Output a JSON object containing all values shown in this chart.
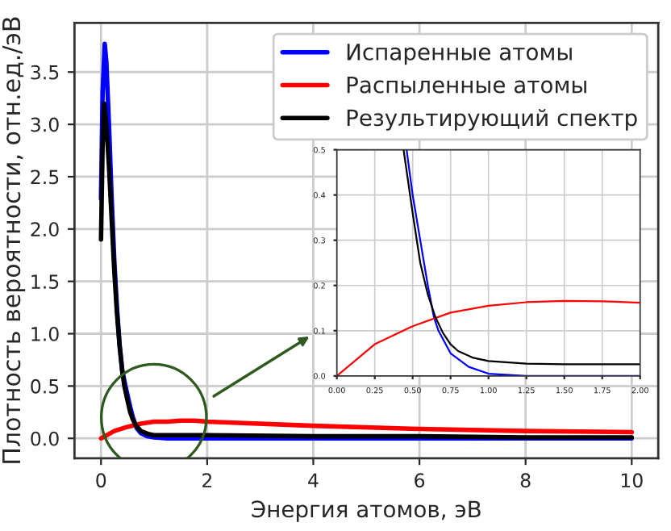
{
  "chart_data": [
    {
      "type": "line",
      "xlabel": "Энергия атомов, эВ",
      "ylabel": "Плотность вероятности, отн.ед./эВ",
      "xlim": [
        -0.5,
        10.5
      ],
      "ylim": [
        -0.19,
        3.97
      ],
      "xticks": [
        0,
        2,
        4,
        6,
        8,
        10
      ],
      "yticks": [
        {
          "value": 0,
          "label": "0.0"
        },
        0.5,
        {
          "value": 1,
          "label": "1.0"
        },
        1.5,
        {
          "value": 2,
          "label": "2.0"
        },
        2.5,
        {
          "value": 3,
          "label": "3.0"
        },
        3.5
      ],
      "grid": true,
      "legend": "top right",
      "series": [
        {
          "name": "Испаренные атомы",
          "color": "#0000ff",
          "x": [
            0,
            0.03,
            0.07,
            0.1,
            0.15,
            0.2,
            0.25,
            0.3,
            0.35,
            0.4,
            0.46,
            0.55,
            0.6,
            0.67,
            0.75,
            0.87,
            1.0,
            1.25,
            2,
            4,
            6,
            8,
            10
          ],
          "values": [
            2.29,
            3.3,
            3.77,
            3.6,
            3.0,
            2.3,
            1.7,
            1.25,
            0.9,
            0.65,
            0.5,
            0.3,
            0.2,
            0.1,
            0.05,
            0.02,
            0.01,
            0,
            0,
            0,
            0,
            0,
            0
          ]
        },
        {
          "name": "Распыленные атомы",
          "color": "#ff0000",
          "x": [
            0,
            0.25,
            0.5,
            0.75,
            1.0,
            1.25,
            1.5,
            1.75,
            2.0,
            4,
            6,
            8,
            10
          ],
          "values": [
            0,
            0.07,
            0.11,
            0.14,
            0.16,
            0.16,
            0.17,
            0.17,
            0.16,
            0.12,
            0.09,
            0.07,
            0.06
          ]
        },
        {
          "name": "Результирующий спектр",
          "color": "#000000",
          "x": [
            0,
            0.03,
            0.06,
            0.1,
            0.15,
            0.2,
            0.25,
            0.3,
            0.35,
            0.4,
            0.44,
            0.5,
            0.55,
            0.6,
            0.65,
            0.7,
            0.75,
            0.8,
            0.9,
            1.0,
            1.25,
            1.5,
            2.0,
            4,
            6,
            8,
            10
          ],
          "values": [
            1.9,
            2.8,
            3.2,
            3.0,
            2.6,
            2.1,
            1.6,
            1.2,
            0.88,
            0.64,
            0.5,
            0.36,
            0.25,
            0.18,
            0.13,
            0.1,
            0.07,
            0.06,
            0.04,
            0.03,
            0.03,
            0.03,
            0.03,
            0.02,
            0.02,
            0.01,
            0.01
          ]
        }
      ]
    },
    {
      "type": "line",
      "xlim": [
        0,
        2
      ],
      "ylim": [
        0,
        0.5
      ],
      "xticks": [
        {
          "value": 0,
          "label": "0.00"
        },
        {
          "value": 0.25,
          "label": "0.25"
        },
        {
          "value": 0.5,
          "label": "0.50"
        },
        {
          "value": 0.75,
          "label": "0.75"
        },
        {
          "value": 1,
          "label": "1.00"
        },
        {
          "value": 1.25,
          "label": "1.25"
        },
        {
          "value": 1.5,
          "label": "1.50"
        },
        {
          "value": 1.75,
          "label": "1.75"
        },
        {
          "value": 2,
          "label": "2.00"
        }
      ],
      "yticks": [
        {
          "value": 0,
          "label": "0.0"
        },
        0.1,
        0.2,
        0.3,
        0.4,
        0.5
      ],
      "grid": true,
      "series": [
        {
          "color": "#0000ff",
          "x": [
            0.46,
            0.5,
            0.55,
            0.6,
            0.64,
            0.67,
            0.75,
            0.87,
            1.0,
            1.25,
            1.5,
            2.0
          ],
          "values": [
            0.5,
            0.4,
            0.3,
            0.2,
            0.13,
            0.1,
            0.05,
            0.02,
            0.005,
            0,
            0,
            0
          ]
        },
        {
          "color": "#ff0000",
          "x": [
            0,
            0.25,
            0.5,
            0.75,
            1.0,
            1.25,
            1.5,
            1.75,
            2.0
          ],
          "values": [
            0,
            0.07,
            0.11,
            0.14,
            0.155,
            0.163,
            0.166,
            0.165,
            0.162
          ]
        },
        {
          "color": "#000000",
          "x": [
            0.44,
            0.5,
            0.55,
            0.6,
            0.65,
            0.7,
            0.75,
            0.8,
            0.9,
            1.0,
            1.25,
            1.5,
            2.0
          ],
          "values": [
            0.5,
            0.36,
            0.25,
            0.18,
            0.13,
            0.095,
            0.07,
            0.055,
            0.04,
            0.033,
            0.027,
            0.026,
            0.026
          ]
        }
      ]
    }
  ]
}
